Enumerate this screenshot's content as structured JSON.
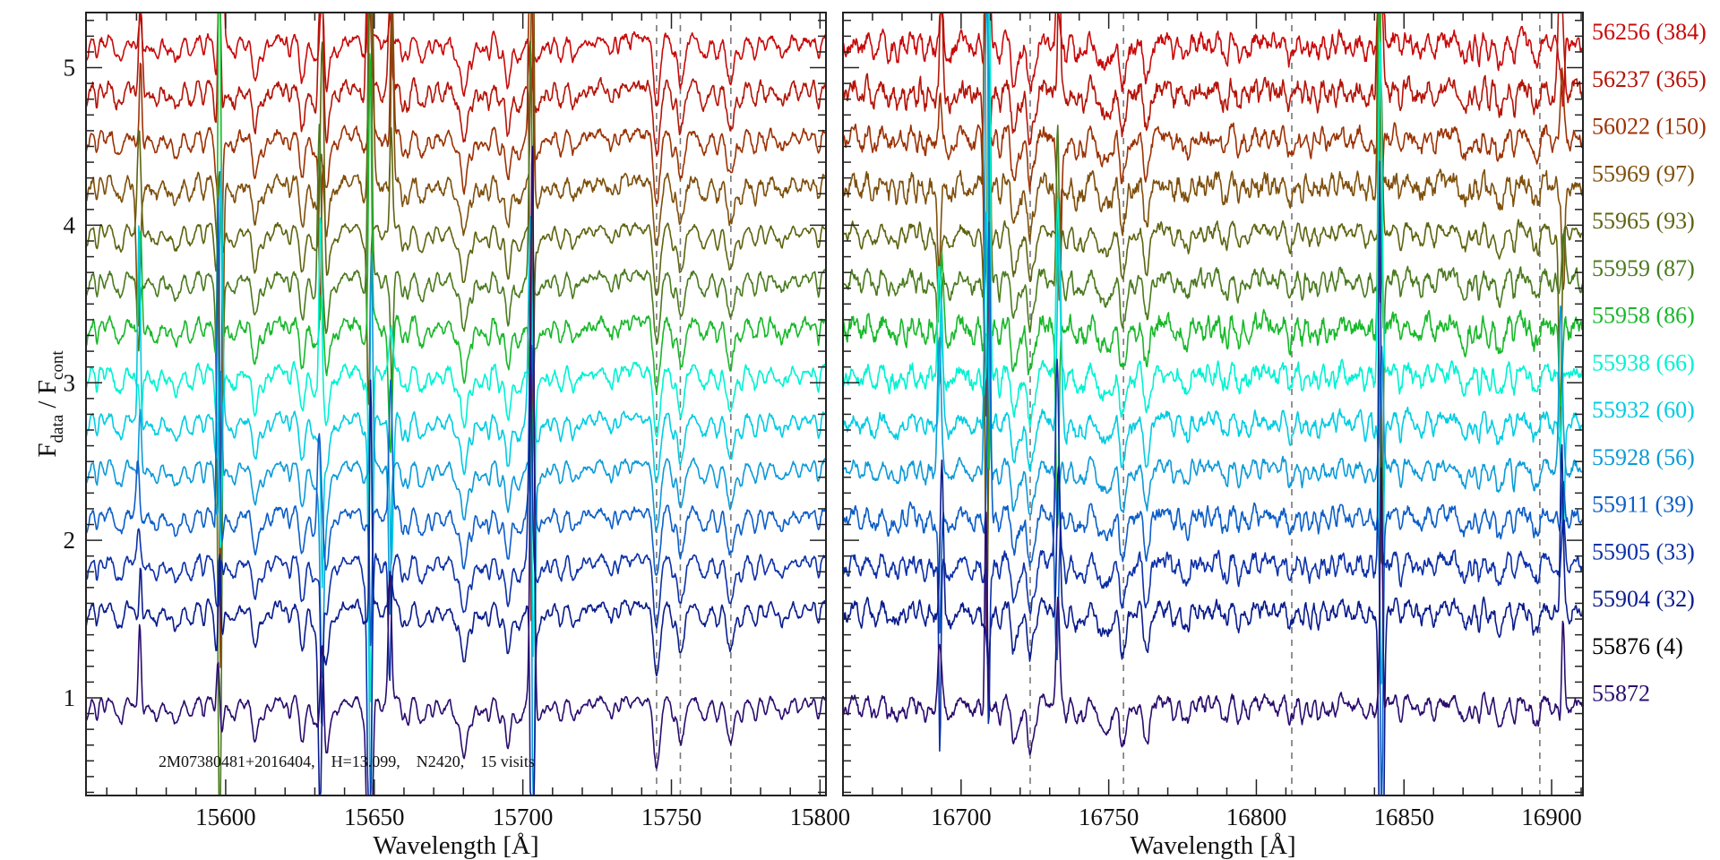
{
  "chart_data": {
    "type": "line",
    "title": "",
    "ylabel_main": "F",
    "ylabel_sub1": "data",
    "ylabel_sep": " / ",
    "ylabel_sub2": "cont",
    "ylim": [
      0.38,
      5.35
    ],
    "yticks": [
      1,
      2,
      3,
      4,
      5
    ],
    "ytick_labels": [
      "1",
      "2",
      "3",
      "4",
      "5"
    ],
    "annotation": "2M07380481+2016404,    H=13.099,    N2420,    15 visits",
    "panels": [
      {
        "xlabel": "Wavelength [Å]",
        "xlim": [
          15553,
          15802
        ],
        "xticks": [
          15600,
          15650,
          15700,
          15750,
          15800
        ],
        "xtick_labels": [
          "15600",
          "15650",
          "15700",
          "15750",
          "15800"
        ],
        "marked_lines": [
          15745,
          15753,
          15770
        ],
        "strong_absorption": [
          15745,
          15753,
          15770,
          15598,
          15626,
          15610,
          15634,
          15680,
          15695
        ],
        "sky_lines": [
          15571,
          15598,
          15632,
          15648.5,
          15655.5,
          15703
        ]
      },
      {
        "xlabel": "Wavelength [Å]",
        "xlim": [
          16660,
          16910.6
        ],
        "xticks": [
          16700,
          16750,
          16800,
          16850,
          16900
        ],
        "xtick_labels": [
          "16700",
          "16750",
          "16800",
          "16850",
          "16900"
        ],
        "marked_lines": [
          16723.4,
          16755,
          16812,
          16896
        ],
        "strong_absorption": [
          16723.4,
          16755,
          16718,
          16763
        ],
        "sky_lines": [
          16693,
          16709,
          16733,
          16842,
          16903.5
        ]
      }
    ],
    "series": [
      {
        "name": "56256 (384)",
        "offset": 5.2,
        "color": "#c80a0a",
        "noise": 0.06
      },
      {
        "name": "56237 (365)",
        "offset": 4.9,
        "color": "#b41408",
        "noise": 0.07
      },
      {
        "name": "56022 (150)",
        "offset": 4.6,
        "color": "#9c3204",
        "noise": 0.06
      },
      {
        "name": "55969 (97)",
        "offset": 4.3,
        "color": "#7e500c",
        "noise": 0.07
      },
      {
        "name": "55965 (93)",
        "offset": 4.0,
        "color": "#5e6410",
        "noise": 0.04
      },
      {
        "name": "55959 (87)",
        "offset": 3.7,
        "color": "#4a7a1e",
        "noise": 0.05
      },
      {
        "name": "55958 (86)",
        "offset": 3.4,
        "color": "#18b82a",
        "noise": 0.07
      },
      {
        "name": "55938 (66)",
        "offset": 3.1,
        "color": "#00f2d2",
        "noise": 0.06
      },
      {
        "name": "55932 (60)",
        "offset": 2.8,
        "color": "#00cce2",
        "noise": 0.05
      },
      {
        "name": "55928 (56)",
        "offset": 2.5,
        "color": "#0c9ad8",
        "noise": 0.04
      },
      {
        "name": "55911 (39)",
        "offset": 2.2,
        "color": "#0c5ec8",
        "noise": 0.05
      },
      {
        "name": "55905 (33)",
        "offset": 1.9,
        "color": "#0c30a8",
        "noise": 0.05
      },
      {
        "name": "55904 (32)",
        "offset": 1.6,
        "color": "#0a1c8c",
        "noise": 0.05
      },
      {
        "name": "55876 (4)",
        "offset": 1.3,
        "color": "#000000",
        "noise": 0,
        "no_spectrum": true
      },
      {
        "name": "55872",
        "offset": 1.0,
        "color": "#2a0c6e",
        "noise": 0.04
      }
    ]
  }
}
